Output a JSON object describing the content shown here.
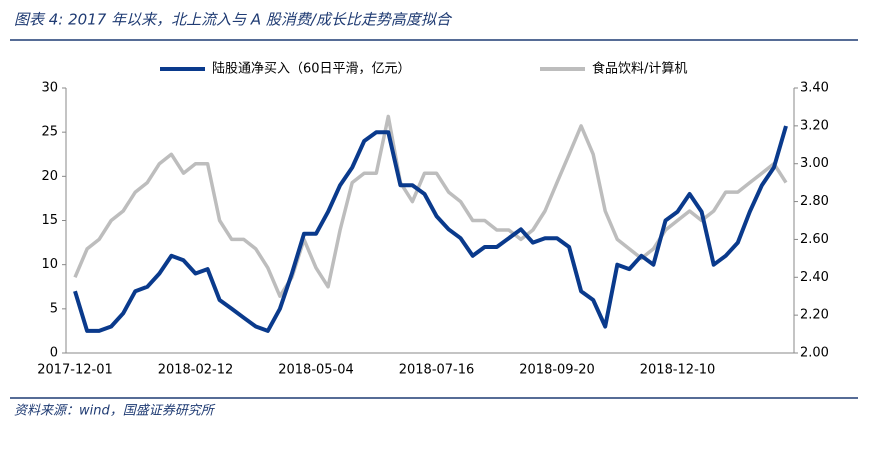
{
  "chart_data": {
    "type": "line",
    "title": "图表 4:  2017 年以来，北上流入与 A 股消费/成长比走势高度拟合",
    "source": "资料来源：wind，国盛证券研究所",
    "categories": [
      "2017-12-01",
      null,
      null,
      null,
      null,
      null,
      null,
      null,
      null,
      null,
      "2018-02-12",
      null,
      null,
      null,
      null,
      null,
      null,
      null,
      null,
      null,
      "2018-05-04",
      null,
      null,
      null,
      null,
      null,
      null,
      null,
      null,
      null,
      "2018-07-16",
      null,
      null,
      null,
      null,
      null,
      null,
      null,
      null,
      null,
      "2018-09-20",
      null,
      null,
      null,
      null,
      null,
      null,
      null,
      null,
      null,
      "2018-12-10",
      null,
      null,
      null,
      null,
      null,
      null,
      null,
      null,
      null
    ],
    "series": [
      {
        "name": "陆股通净买入（60日平滑，亿元）",
        "color": "#0a3a8c",
        "values": [
          7,
          2.5,
          2.5,
          3,
          4.5,
          7,
          7.5,
          9,
          11,
          10.5,
          9,
          9.5,
          6,
          5,
          4,
          3,
          2.5,
          5,
          9,
          13.5,
          13.5,
          16,
          19,
          21,
          24,
          25,
          25,
          19,
          19,
          18,
          15.5,
          14,
          13,
          11,
          12,
          12,
          13,
          14,
          12.5,
          13,
          13,
          12,
          7,
          6,
          3,
          10,
          9.5,
          11,
          10,
          15,
          16,
          18,
          16,
          10,
          11,
          12.5,
          16,
          19,
          21,
          25.7
        ]
      },
      {
        "name": "食品饮料/计算机",
        "color": "#bdbdbd",
        "axis": "y2",
        "values": [
          2.4,
          2.55,
          2.6,
          2.7,
          2.75,
          2.85,
          2.9,
          3.0,
          3.05,
          2.95,
          3.0,
          3.0,
          2.7,
          2.6,
          2.6,
          2.55,
          2.45,
          2.3,
          2.4,
          2.6,
          2.45,
          2.35,
          2.65,
          2.9,
          2.95,
          2.95,
          3.25,
          2.9,
          2.8,
          2.95,
          2.95,
          2.85,
          2.8,
          2.7,
          2.7,
          2.65,
          2.65,
          2.6,
          2.65,
          2.75,
          2.9,
          3.05,
          3.2,
          3.05,
          2.75,
          2.6,
          2.55,
          2.5,
          2.55,
          2.65,
          2.7,
          2.75,
          2.7,
          2.75,
          2.85,
          2.85,
          2.9,
          2.95,
          3.0,
          2.9
        ]
      }
    ],
    "ylim": [
      0,
      30
    ],
    "yticks": [
      0,
      5,
      10,
      15,
      20,
      25,
      30
    ],
    "y2lim": [
      2.0,
      3.4
    ],
    "y2ticks": [
      {
        "value": 2.0,
        "label": "2.00"
      },
      {
        "value": 2.2,
        "label": "2.20"
      },
      {
        "value": 2.4,
        "label": "2.40"
      },
      {
        "value": 2.6,
        "label": "2.60"
      },
      {
        "value": 2.8,
        "label": "2.80"
      },
      {
        "value": 3.0,
        "label": "3.00"
      },
      {
        "value": 3.2,
        "label": "3.20"
      },
      {
        "value": 3.4,
        "label": "3.40"
      }
    ]
  }
}
